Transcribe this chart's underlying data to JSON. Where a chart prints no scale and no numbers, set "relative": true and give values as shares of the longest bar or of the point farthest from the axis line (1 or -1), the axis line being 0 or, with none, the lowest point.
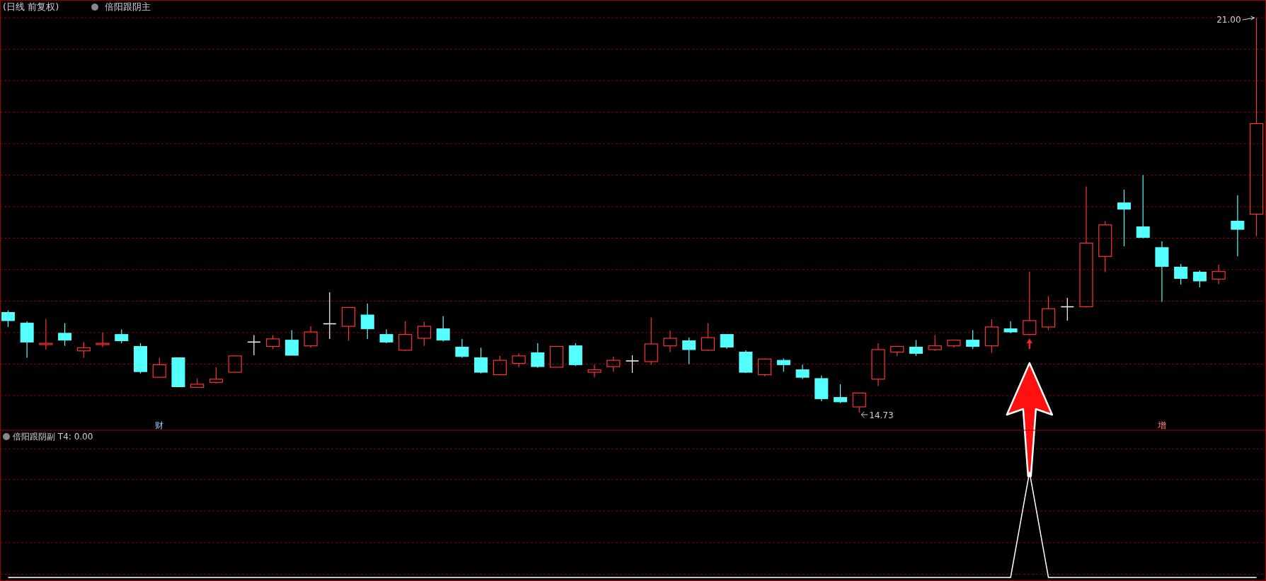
{
  "chart_data": [
    {
      "type": "candlestick",
      "title": "(日线 前复权)",
      "subtitle": "倍阳跟阴主",
      "categories": [
        null,
        null,
        null,
        null,
        null,
        null,
        null,
        null,
        null,
        null,
        null,
        null,
        null,
        null,
        null,
        null,
        null,
        null,
        null,
        null,
        null,
        null,
        null,
        null,
        null,
        null,
        null,
        null,
        null,
        null,
        null,
        null,
        null,
        null,
        null,
        null,
        null,
        null,
        null,
        null,
        null,
        null,
        null,
        null,
        null,
        null,
        null,
        null,
        null,
        null,
        null,
        null,
        null,
        null,
        null,
        null,
        null,
        null,
        null,
        null,
        null,
        null,
        null,
        null,
        null,
        null,
        null
      ],
      "ohlc": [
        [
          16.32,
          16.35,
          16.09,
          16.19
        ],
        [
          16.15,
          16.18,
          15.6,
          15.85
        ],
        [
          15.81,
          16.22,
          15.73,
          15.83
        ],
        [
          15.99,
          16.15,
          15.79,
          15.88
        ],
        [
          15.71,
          15.85,
          15.6,
          15.76
        ],
        [
          15.81,
          16.0,
          15.77,
          15.83
        ],
        [
          15.97,
          16.05,
          15.83,
          15.87
        ],
        [
          15.78,
          15.83,
          15.35,
          15.38
        ],
        [
          15.29,
          15.6,
          15.28,
          15.49
        ],
        [
          15.6,
          15.6,
          15.14,
          15.14
        ],
        [
          15.13,
          15.27,
          15.12,
          15.18
        ],
        [
          15.21,
          15.45,
          15.19,
          15.26
        ],
        [
          15.37,
          15.63,
          15.37,
          15.63
        ],
        [
          15.85,
          15.96,
          15.64,
          15.85
        ],
        [
          15.78,
          15.96,
          15.74,
          15.9
        ],
        [
          15.88,
          16.04,
          15.64,
          15.64
        ],
        [
          15.79,
          16.1,
          15.76,
          16.01
        ],
        [
          16.14,
          16.64,
          15.9,
          16.14
        ],
        [
          16.1,
          16.4,
          15.87,
          16.4
        ],
        [
          16.28,
          16.46,
          15.9,
          16.06
        ],
        [
          15.97,
          16.05,
          15.83,
          15.85
        ],
        [
          15.72,
          16.18,
          15.71,
          15.97
        ],
        [
          15.91,
          16.17,
          15.79,
          16.1
        ],
        [
          16.06,
          16.26,
          15.86,
          15.88
        ],
        [
          15.77,
          15.9,
          15.6,
          15.62
        ],
        [
          15.6,
          15.76,
          15.35,
          15.37
        ],
        [
          15.33,
          15.63,
          15.32,
          15.56
        ],
        [
          15.51,
          15.67,
          15.45,
          15.63
        ],
        [
          15.68,
          15.83,
          15.44,
          15.46
        ],
        [
          15.45,
          15.78,
          15.45,
          15.78
        ],
        [
          15.79,
          15.83,
          15.47,
          15.49
        ],
        [
          15.37,
          15.49,
          15.29,
          15.41
        ],
        [
          15.46,
          15.62,
          15.38,
          15.56
        ],
        [
          15.55,
          15.64,
          15.36,
          15.55
        ],
        [
          15.54,
          16.24,
          15.49,
          15.82
        ],
        [
          15.79,
          16.03,
          15.69,
          15.91
        ],
        [
          15.87,
          15.92,
          15.5,
          15.73
        ],
        [
          15.72,
          16.15,
          15.71,
          15.92
        ],
        [
          15.97,
          15.97,
          15.74,
          15.77
        ],
        [
          15.69,
          15.72,
          15.36,
          15.37
        ],
        [
          15.33,
          15.59,
          15.31,
          15.58
        ],
        [
          15.56,
          15.59,
          15.38,
          15.49
        ],
        [
          15.41,
          15.49,
          15.26,
          15.29
        ],
        [
          15.27,
          15.32,
          14.91,
          14.95
        ],
        [
          14.97,
          15.18,
          14.88,
          14.9
        ],
        [
          14.82,
          15.04,
          14.73,
          15.04
        ],
        [
          15.26,
          15.83,
          15.15,
          15.73
        ],
        [
          15.69,
          15.79,
          15.63,
          15.78
        ],
        [
          15.77,
          15.88,
          15.63,
          15.67
        ],
        [
          15.73,
          15.96,
          15.71,
          15.79
        ],
        [
          15.79,
          15.88,
          15.76,
          15.88
        ],
        [
          15.88,
          16.04,
          15.74,
          15.78
        ],
        [
          15.79,
          16.21,
          15.68,
          16.09
        ],
        [
          16.06,
          16.18,
          15.99,
          16.01
        ],
        [
          15.97,
          16.97,
          15.96,
          16.19
        ],
        [
          16.09,
          16.58,
          16.04,
          16.38
        ],
        [
          16.41,
          16.55,
          16.19,
          16.41
        ],
        [
          16.41,
          18.32,
          16.4,
          17.42
        ],
        [
          17.21,
          17.77,
          16.96,
          17.71
        ],
        [
          18.06,
          18.27,
          17.37,
          17.96
        ],
        [
          17.68,
          18.5,
          17.5,
          17.51
        ],
        [
          17.35,
          17.45,
          16.49,
          17.05
        ],
        [
          17.04,
          17.09,
          16.76,
          16.86
        ],
        [
          16.96,
          16.99,
          16.72,
          16.82
        ],
        [
          16.85,
          17.08,
          16.77,
          16.97
        ],
        [
          17.77,
          18.18,
          17.21,
          17.64
        ],
        [
          17.88,
          21.0,
          17.53,
          19.32
        ]
      ],
      "colors": [
        "#54ffff",
        "#54ffff",
        "#ff3232",
        "#54ffff",
        "#ff3232",
        "#ff3232",
        "#54ffff",
        "#54ffff",
        "#ff3232",
        "#54ffff",
        "#ff3232",
        "#ff3232",
        "#ff3232",
        "#ffffff",
        "#ff3232",
        "#54ffff",
        "#ff3232",
        "#ffffff",
        "#ff3232",
        "#54ffff",
        "#54ffff",
        "#ff3232",
        "#ff3232",
        "#54ffff",
        "#54ffff",
        "#54ffff",
        "#ff3232",
        "#ff3232",
        "#54ffff",
        "#ff3232",
        "#54ffff",
        "#ff3232",
        "#ff3232",
        "#ffffff",
        "#ff3232",
        "#ff3232",
        "#54ffff",
        "#ff3232",
        "#54ffff",
        "#54ffff",
        "#ff3232",
        "#54ffff",
        "#54ffff",
        "#54ffff",
        "#54ffff",
        "#ff3232",
        "#ff3232",
        "#ff3232",
        "#54ffff",
        "#ff3232",
        "#ff3232",
        "#54ffff",
        "#ff3232",
        "#54ffff",
        "#ff3232",
        "#ff3232",
        "#ffffff",
        "#ff3232",
        "#ff3232",
        "#54ffff",
        "#54ffff",
        "#54ffff",
        "#54ffff",
        "#54ffff",
        "#ff3232",
        "#54ffff",
        "#ff3232"
      ],
      "ylim": [
        14.46,
        21.26
      ],
      "yticks": [
        {
          "value": 15,
          "label": null
        },
        {
          "value": 15.5,
          "label": null
        },
        {
          "value": 16,
          "label": null
        },
        {
          "value": 16.5,
          "label": null
        },
        {
          "value": 17,
          "label": null
        },
        {
          "value": 17.5,
          "label": null
        },
        {
          "value": 18,
          "label": null
        },
        {
          "value": 18.5,
          "label": null
        },
        {
          "value": 19,
          "label": null
        },
        {
          "value": 19.5,
          "label": null
        },
        {
          "value": 20,
          "label": null
        },
        {
          "value": 20.5,
          "label": null
        },
        {
          "value": 21,
          "label": null
        }
      ],
      "grid": "y",
      "annotations": [
        "21.00",
        "14.73",
        "财",
        "增"
      ]
    },
    {
      "type": "line",
      "title": "倍阳跟阴副 T4: 0.00",
      "relative": true,
      "ref_lines": [
        {
          "axis": "y",
          "value": 1.22,
          "color": "#8a0000",
          "line_style": "dashed"
        },
        {
          "axis": "y",
          "value": 0.93,
          "color": "#8a0000",
          "line_style": "dashed"
        },
        {
          "axis": "y",
          "value": 0.63,
          "color": "#8a0000",
          "line_style": "dashed"
        },
        {
          "axis": "y",
          "value": 0.33,
          "color": "#8a0000",
          "line_style": "dashed"
        },
        {
          "axis": "y",
          "value": 0.03,
          "color": "#8a0000",
          "line_style": "dashed"
        }
      ],
      "categories": [
        null,
        null,
        null,
        null,
        null,
        null,
        null,
        null,
        null,
        null,
        null,
        null,
        null,
        null,
        null,
        null,
        null,
        null,
        null,
        null,
        null,
        null,
        null,
        null,
        null,
        null,
        null,
        null,
        null,
        null,
        null,
        null,
        null,
        null,
        null,
        null,
        null,
        null,
        null,
        null,
        null,
        null,
        null,
        null,
        null,
        null,
        null,
        null,
        null,
        null,
        null,
        null,
        null,
        null,
        null,
        null,
        null,
        null,
        null,
        null,
        null,
        null,
        null,
        null,
        null,
        null,
        null
      ],
      "series": [
        {
          "color": "#ffffff",
          "values": [
            0,
            0,
            0,
            0,
            0,
            0,
            0,
            0,
            0,
            0,
            0,
            0,
            0,
            0,
            0,
            0,
            0,
            0,
            0,
            0,
            0,
            0,
            0,
            0,
            0,
            0,
            0,
            0,
            0,
            0,
            0,
            0,
            0,
            0,
            0,
            0,
            0,
            0,
            0,
            0,
            0,
            0,
            0,
            0,
            0,
            0,
            0,
            0,
            0,
            0,
            0,
            0,
            0,
            0,
            1,
            0,
            0,
            0,
            0,
            0,
            0,
            0,
            0,
            0,
            0,
            0,
            0
          ]
        }
      ]
    }
  ]
}
